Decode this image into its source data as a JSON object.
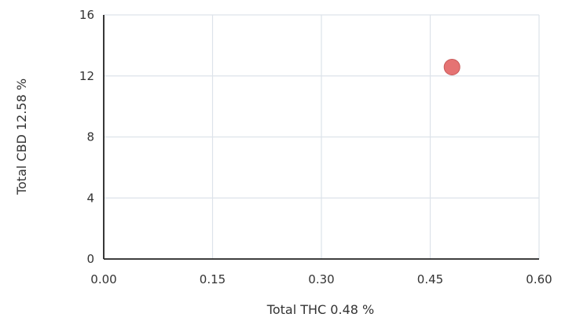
{
  "chart_data": {
    "type": "scatter",
    "xlabel": "Total THC 0.48 %",
    "ylabel": "Total CBD 12.58 %",
    "xlim": [
      0,
      0.6
    ],
    "ylim": [
      0,
      16
    ],
    "x_ticks": [
      "0.00",
      "0.15",
      "0.30",
      "0.45",
      "0.60"
    ],
    "y_ticks": [
      "0",
      "4",
      "8",
      "12",
      "16"
    ],
    "grid": true,
    "points": [
      {
        "x": 0.48,
        "y": 12.58
      }
    ],
    "point_color": "#e57373",
    "point_stroke": "#c85a5a"
  }
}
